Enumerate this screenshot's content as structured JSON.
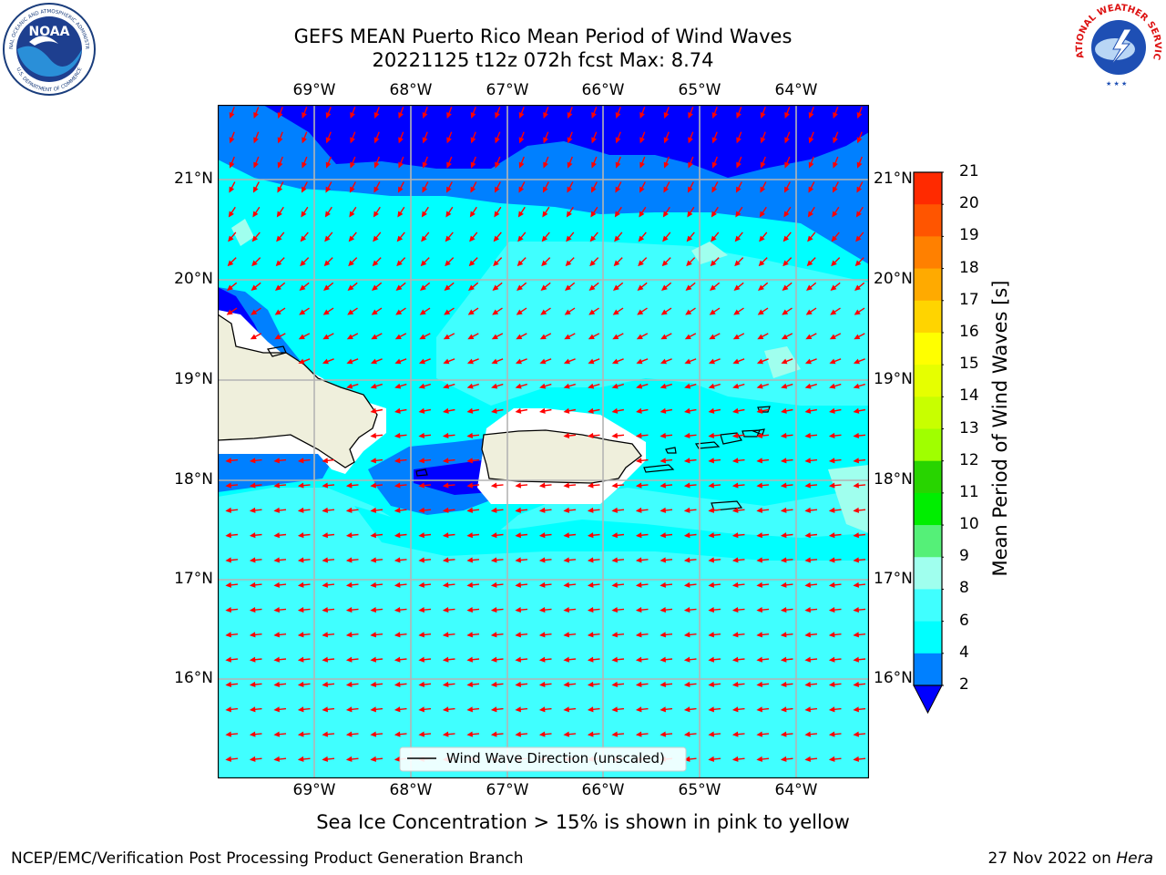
{
  "title_line1": "GEFS MEAN Puerto Rico Mean Period of Wind Waves",
  "title_line2": "20221125 t12z 072h fcst   Max: 8.74",
  "lon_ticks": [
    "69°W",
    "68°W",
    "67°W",
    "66°W",
    "65°W",
    "64°W"
  ],
  "lat_ticks": [
    "21°N",
    "20°N",
    "19°N",
    "18°N",
    "17°N",
    "16°N"
  ],
  "legend_label": "Wind Wave Direction (unscaled)",
  "colorbar": {
    "label": "Mean Period of Wind Waves [s]",
    "ticks": [
      "21",
      "20",
      "19",
      "18",
      "17",
      "16",
      "15",
      "14",
      "13",
      "12",
      "11",
      "10",
      "9",
      "8",
      "6",
      "4",
      "2"
    ],
    "colors": [
      "#ff0000",
      "#ff2a00",
      "#ff5500",
      "#ff8000",
      "#ffaa00",
      "#ffd400",
      "#ffff00",
      "#e6ff00",
      "#c8ff00",
      "#a0ff00",
      "#28d400",
      "#00ee00",
      "#55f078",
      "#a0ffee",
      "#40ffff",
      "#00ffff",
      "#0080ff",
      "#0000ff"
    ],
    "extend_color": "#0000ff"
  },
  "colors": {
    "period_2_4": "#0080ff",
    "period_lt_2": "#0000ff",
    "period_4_6": "#00ffff",
    "period_6_8": "#40ffff",
    "period_8_9": "#a0ffee",
    "land": "#efefdc",
    "arrows": "#ff0000"
  },
  "caption": "Sea Ice Concentration > 15% is shown in pink to yellow",
  "footer_left": "NCEP/EMC/Verification Post Processing Product Generation Branch",
  "footer_right_date": "27 Nov 2022 on ",
  "footer_right_host": "Hera",
  "logos": {
    "noaa_text": "NOAA",
    "noaa_ring": "NATIONAL OCEANIC AND ATMOSPHERIC ADMINISTRATION",
    "noaa_ring_bottom": "U.S. DEPARTMENT OF COMMERCE",
    "nws_ring": "NATIONAL WEATHER SERVICE"
  }
}
